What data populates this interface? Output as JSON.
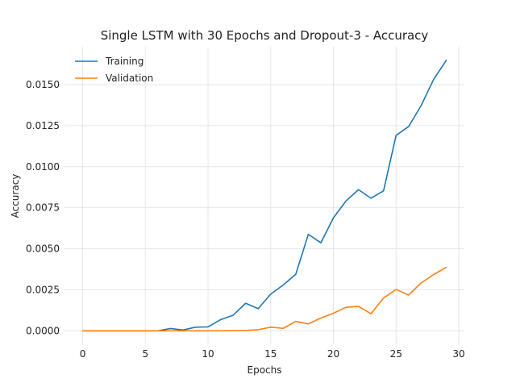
{
  "chart_data": {
    "type": "line",
    "title": "Single LSTM with 30 Epochs and Dropout-3 - Accuracy",
    "xlabel": "Epochs",
    "ylabel": "Accuracy",
    "xlim": [
      -1.45,
      30.45
    ],
    "ylim": [
      -0.00082,
      0.01731
    ],
    "xticks": [
      0,
      5,
      10,
      15,
      20,
      25,
      30
    ],
    "xtick_labels": [
      "0",
      "5",
      "10",
      "15",
      "20",
      "25",
      "30"
    ],
    "yticks": [
      0.0,
      0.0025,
      0.005,
      0.0075,
      0.01,
      0.0125,
      0.015
    ],
    "ytick_labels": [
      "0.0000",
      "0.0025",
      "0.0050",
      "0.0075",
      "0.0100",
      "0.0125",
      "0.0150"
    ],
    "grid": true,
    "legend_position": "upper-left",
    "x": [
      0,
      1,
      2,
      3,
      4,
      5,
      6,
      7,
      8,
      9,
      10,
      11,
      12,
      13,
      14,
      15,
      16,
      17,
      18,
      19,
      20,
      21,
      22,
      23,
      24,
      25,
      26,
      27,
      28,
      29
    ],
    "series": [
      {
        "name": "Training",
        "color": "#1f77b4",
        "values": [
          0.0,
          0.0,
          0.0,
          0.0,
          0.0,
          0.0,
          0.0,
          0.00014,
          5e-05,
          0.00022,
          0.00024,
          0.00068,
          0.00095,
          0.00168,
          0.00135,
          0.00224,
          0.00279,
          0.00345,
          0.00588,
          0.00536,
          0.00688,
          0.00791,
          0.0086,
          0.00808,
          0.00853,
          0.01191,
          0.01245,
          0.01373,
          0.01533,
          0.01648
        ]
      },
      {
        "name": "Validation",
        "color": "#ff7f0e",
        "values": [
          0.0,
          0.0,
          0.0,
          0.0,
          0.0,
          0.0,
          0.0,
          0.0,
          0.0,
          0.0,
          0.0,
          0.0,
          2e-05,
          2e-05,
          7e-05,
          0.00022,
          0.00015,
          0.00057,
          0.00042,
          0.00078,
          0.00107,
          0.00143,
          0.00149,
          0.00104,
          0.002,
          0.00252,
          0.00218,
          0.00292,
          0.00343,
          0.00387
        ]
      }
    ]
  }
}
